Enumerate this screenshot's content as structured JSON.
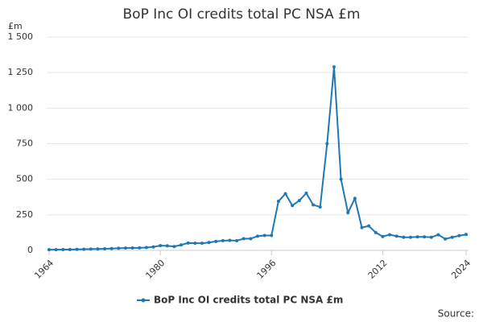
{
  "chart_data": {
    "type": "line",
    "title": "BoP Inc OI credits total PC NSA £m",
    "y_unit": "£m",
    "source": "Source:",
    "x": [
      1964,
      1965,
      1966,
      1967,
      1968,
      1969,
      1970,
      1971,
      1972,
      1973,
      1974,
      1975,
      1976,
      1977,
      1978,
      1979,
      1980,
      1981,
      1982,
      1983,
      1984,
      1985,
      1986,
      1987,
      1988,
      1989,
      1990,
      1991,
      1992,
      1993,
      1994,
      1995,
      1996,
      1997,
      1998,
      1999,
      2000,
      2001,
      2002,
      2003,
      2004,
      2005,
      2006,
      2007,
      2008,
      2009,
      2010,
      2011,
      2012,
      2013,
      2014,
      2015,
      2016,
      2017,
      2018,
      2019,
      2020,
      2021,
      2022,
      2023,
      2024
    ],
    "series": [
      {
        "name": "BoP Inc OI credits total PC NSA £m",
        "color": "#1f78b4",
        "values": [
          5,
          5,
          6,
          6,
          7,
          8,
          9,
          10,
          11,
          13,
          15,
          16,
          17,
          18,
          20,
          24,
          33,
          32,
          27,
          38,
          52,
          50,
          50,
          55,
          63,
          68,
          70,
          68,
          82,
          82,
          100,
          105,
          105,
          345,
          398,
          315,
          350,
          402,
          320,
          305,
          750,
          1290,
          500,
          265,
          365,
          160,
          172,
          125,
          97,
          110,
          100,
          92,
          92,
          95,
          95,
          92,
          110,
          80,
          92,
          103,
          112
        ]
      }
    ],
    "xlim": [
      1964,
      2024
    ],
    "xticks": [
      1964,
      1980,
      1996,
      2012,
      2024
    ],
    "ylim": [
      0,
      1500
    ],
    "yticks": [
      0,
      250,
      500,
      750,
      {
        "value": 1000,
        "label": "1 000"
      },
      {
        "value": 1250,
        "label": "1 250"
      },
      {
        "value": 1500,
        "label": "1 500"
      }
    ],
    "grid": true
  }
}
